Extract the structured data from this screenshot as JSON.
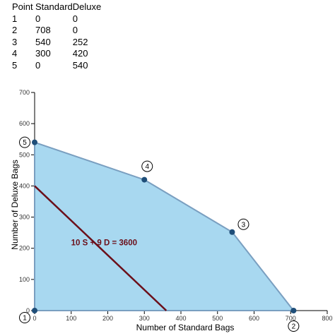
{
  "table": {
    "headers": [
      "Point",
      "Standard",
      "Deluxe"
    ],
    "rows": [
      [
        "1",
        "0",
        "0"
      ],
      [
        "2",
        "708",
        "0"
      ],
      [
        "3",
        "540",
        "252"
      ],
      [
        "4",
        "300",
        "420"
      ],
      [
        "5",
        "0",
        "540"
      ]
    ]
  },
  "chart_data": {
    "type": "area",
    "xlabel": "Number of Standard Bags",
    "ylabel": "Number of Deluxe Bags",
    "xlim": [
      0,
      800
    ],
    "ylim": [
      0,
      700
    ],
    "x_ticks": [
      0,
      100,
      200,
      300,
      400,
      500,
      600,
      700,
      800
    ],
    "y_ticks": [
      0,
      100,
      200,
      300,
      400,
      500,
      600,
      700
    ],
    "grid": false,
    "feasible_region": {
      "points": [
        {
          "label": "1",
          "x": 0,
          "y": 0
        },
        {
          "label": "2",
          "x": 708,
          "y": 0
        },
        {
          "label": "3",
          "x": 540,
          "y": 252
        },
        {
          "label": "4",
          "x": 300,
          "y": 420
        },
        {
          "label": "5",
          "x": 0,
          "y": 540
        }
      ],
      "fill_color": "#a8d8f0",
      "stroke_color": "#7a9fc0",
      "point_color": "#1f4e79"
    },
    "objective_line": {
      "equation": "10 S + 9 D = 3600",
      "x_intercept": 360,
      "y_intercept": 400,
      "color": "#6b0f1a"
    },
    "annotations": [
      "10 S + 9 D = 3600"
    ]
  }
}
